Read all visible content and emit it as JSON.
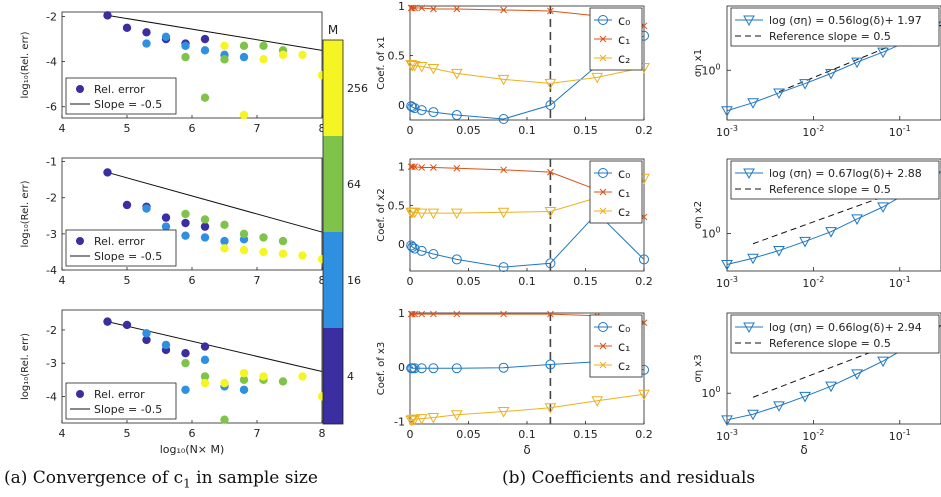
{
  "captions": {
    "a": "(a) Convergence of c",
    "a_sub": "1",
    "a_tail": " in sample size",
    "b": "(b) Coefficients and residuals"
  },
  "colors": {
    "m4": "#3a2ea0",
    "m16": "#2f8fe0",
    "m64": "#7fc34a",
    "m256": "#f5f523",
    "c0": "#1f77c4",
    "c1": "#d95319",
    "c2": "#edb120",
    "sigma": "#1f77c4"
  },
  "chart_data": [
    {
      "id": "a1",
      "type": "scatter",
      "xlim": [
        4,
        8
      ],
      "ylim": [
        -6.5,
        -1.8
      ],
      "xticks": [
        "4",
        "5",
        "6",
        "7",
        "8"
      ],
      "yticks": [
        -6,
        -4,
        -2
      ],
      "ytick_labels": [
        "-6",
        "-4",
        "-2"
      ],
      "xlabel": "",
      "ylabel": "log₁₀(Rel. err)",
      "legend": [
        "Rel. error",
        "Slope = -0.5"
      ],
      "legend_pos": "bottom-left",
      "slope_line": [
        [
          4.7,
          -1.95
        ],
        [
          8,
          -3.5
        ]
      ],
      "points": [
        {
          "x": 4.7,
          "y": -1.95,
          "m": "4"
        },
        {
          "x": 5.0,
          "y": -2.5,
          "m": "4"
        },
        {
          "x": 5.3,
          "y": -2.7,
          "m": "4"
        },
        {
          "x": 5.6,
          "y": -3.0,
          "m": "4"
        },
        {
          "x": 5.9,
          "y": -3.2,
          "m": "4"
        },
        {
          "x": 6.2,
          "y": -3.0,
          "m": "4"
        },
        {
          "x": 5.3,
          "y": -3.2,
          "m": "16"
        },
        {
          "x": 5.6,
          "y": -2.9,
          "m": "16"
        },
        {
          "x": 5.9,
          "y": -3.3,
          "m": "16"
        },
        {
          "x": 6.2,
          "y": -3.5,
          "m": "16"
        },
        {
          "x": 6.5,
          "y": -3.7,
          "m": "16"
        },
        {
          "x": 6.8,
          "y": -3.8,
          "m": "16"
        },
        {
          "x": 5.9,
          "y": -3.8,
          "m": "64"
        },
        {
          "x": 6.2,
          "y": -5.6,
          "m": "64"
        },
        {
          "x": 6.5,
          "y": -3.9,
          "m": "64"
        },
        {
          "x": 6.8,
          "y": -3.3,
          "m": "64"
        },
        {
          "x": 7.1,
          "y": -3.3,
          "m": "64"
        },
        {
          "x": 7.4,
          "y": -3.5,
          "m": "64"
        },
        {
          "x": 6.5,
          "y": -3.3,
          "m": "256"
        },
        {
          "x": 6.8,
          "y": -6.4,
          "m": "256"
        },
        {
          "x": 7.1,
          "y": -3.9,
          "m": "256"
        },
        {
          "x": 7.4,
          "y": -3.7,
          "m": "256"
        },
        {
          "x": 7.7,
          "y": -3.7,
          "m": "256"
        },
        {
          "x": 8.0,
          "y": -4.6,
          "m": "256"
        }
      ]
    },
    {
      "id": "a2",
      "type": "scatter",
      "xlim": [
        4,
        8
      ],
      "ylim": [
        -4,
        -0.9
      ],
      "xticks": [
        "4",
        "5",
        "6",
        "7",
        "8"
      ],
      "yticks": [
        -4,
        -3,
        -2,
        -1
      ],
      "ytick_labels": [
        "-4",
        "-3",
        "-2",
        "-1"
      ],
      "xlabel": "",
      "ylabel": "log₁₀(Rel. err)",
      "legend": [
        "Rel. error",
        "Slope = -0.5"
      ],
      "legend_pos": "bottom-left",
      "slope_line": [
        [
          4.7,
          -1.3
        ],
        [
          8,
          -2.95
        ]
      ],
      "points": [
        {
          "x": 4.7,
          "y": -1.3,
          "m": "4"
        },
        {
          "x": 5.0,
          "y": -2.2,
          "m": "4"
        },
        {
          "x": 5.3,
          "y": -2.25,
          "m": "4"
        },
        {
          "x": 5.6,
          "y": -2.55,
          "m": "4"
        },
        {
          "x": 5.9,
          "y": -2.7,
          "m": "4"
        },
        {
          "x": 6.2,
          "y": -2.8,
          "m": "4"
        },
        {
          "x": 5.3,
          "y": -2.3,
          "m": "16"
        },
        {
          "x": 5.6,
          "y": -2.8,
          "m": "16"
        },
        {
          "x": 5.9,
          "y": -3.05,
          "m": "16"
        },
        {
          "x": 6.2,
          "y": -3.1,
          "m": "16"
        },
        {
          "x": 6.5,
          "y": -3.2,
          "m": "16"
        },
        {
          "x": 6.8,
          "y": -3.15,
          "m": "16"
        },
        {
          "x": 5.9,
          "y": -2.45,
          "m": "64"
        },
        {
          "x": 6.2,
          "y": -2.6,
          "m": "64"
        },
        {
          "x": 6.5,
          "y": -2.75,
          "m": "64"
        },
        {
          "x": 6.8,
          "y": -3.0,
          "m": "64"
        },
        {
          "x": 7.1,
          "y": -3.1,
          "m": "64"
        },
        {
          "x": 7.4,
          "y": -3.2,
          "m": "64"
        },
        {
          "x": 6.5,
          "y": -3.4,
          "m": "256"
        },
        {
          "x": 6.8,
          "y": -3.45,
          "m": "256"
        },
        {
          "x": 7.1,
          "y": -3.5,
          "m": "256"
        },
        {
          "x": 7.4,
          "y": -3.55,
          "m": "256"
        },
        {
          "x": 7.7,
          "y": -3.6,
          "m": "256"
        },
        {
          "x": 8.0,
          "y": -3.7,
          "m": "256"
        }
      ]
    },
    {
      "id": "a3",
      "type": "scatter",
      "xlim": [
        4,
        8
      ],
      "ylim": [
        -4.8,
        -1.4
      ],
      "xticks": [
        "4",
        "5",
        "6",
        "7",
        "8"
      ],
      "yticks": [
        -4,
        -3,
        -2
      ],
      "ytick_labels": [
        "-4",
        "-3",
        "-2"
      ],
      "xlabel": "log₁₀(N× M)",
      "ylabel": "log₁₀(Rel. err)",
      "legend": [
        "Rel. error",
        "Slope = -0.5"
      ],
      "legend_pos": "bottom-left",
      "slope_line": [
        [
          4.7,
          -1.75
        ],
        [
          8,
          -3.25
        ]
      ],
      "points": [
        {
          "x": 4.7,
          "y": -1.75,
          "m": "4"
        },
        {
          "x": 5.0,
          "y": -1.85,
          "m": "4"
        },
        {
          "x": 5.3,
          "y": -2.3,
          "m": "4"
        },
        {
          "x": 5.6,
          "y": -2.6,
          "m": "4"
        },
        {
          "x": 5.9,
          "y": -2.7,
          "m": "4"
        },
        {
          "x": 6.2,
          "y": -2.5,
          "m": "4"
        },
        {
          "x": 5.3,
          "y": -2.1,
          "m": "16"
        },
        {
          "x": 5.6,
          "y": -2.45,
          "m": "16"
        },
        {
          "x": 5.9,
          "y": -3.8,
          "m": "16"
        },
        {
          "x": 6.2,
          "y": -2.9,
          "m": "16"
        },
        {
          "x": 6.5,
          "y": -3.7,
          "m": "16"
        },
        {
          "x": 6.8,
          "y": -3.8,
          "m": "16"
        },
        {
          "x": 5.9,
          "y": -3.0,
          "m": "64"
        },
        {
          "x": 6.2,
          "y": -3.4,
          "m": "64"
        },
        {
          "x": 6.5,
          "y": -4.7,
          "m": "64"
        },
        {
          "x": 6.8,
          "y": -3.5,
          "m": "64"
        },
        {
          "x": 7.1,
          "y": -3.5,
          "m": "64"
        },
        {
          "x": 7.4,
          "y": -3.55,
          "m": "64"
        },
        {
          "x": 6.2,
          "y": -3.6,
          "m": "256"
        },
        {
          "x": 6.5,
          "y": -3.6,
          "m": "256"
        },
        {
          "x": 6.8,
          "y": -3.3,
          "m": "256"
        },
        {
          "x": 7.1,
          "y": -3.4,
          "m": "256"
        },
        {
          "x": 7.7,
          "y": -3.4,
          "m": "256"
        },
        {
          "x": 8.0,
          "y": -4.0,
          "m": "256"
        }
      ]
    },
    {
      "id": "colorbar",
      "type": "colorbar",
      "title": "M",
      "labels": [
        "256",
        "64",
        "16",
        "4"
      ]
    },
    {
      "id": "b1",
      "type": "line",
      "xlim": [
        0,
        0.2
      ],
      "ylim": [
        -0.15,
        1.0
      ],
      "xticks": [
        "0",
        "0.05",
        "0.1",
        "0.15",
        "0.2"
      ],
      "yticks": [
        0,
        0.5,
        1
      ],
      "ytick_labels": [
        "0",
        "0.5",
        "1"
      ],
      "ylabel": "Coef. of x1",
      "xlabel": "",
      "vline": 0.12,
      "legend": [
        "c₀",
        "c₁",
        "c₂"
      ],
      "legend_pos": "top-right",
      "series": [
        {
          "key": "c0",
          "marker": "circle",
          "x": [
            0.001,
            0.002,
            0.004,
            0.01,
            0.02,
            0.04,
            0.08,
            0.12,
            0.16,
            0.2
          ],
          "y": [
            -0.01,
            -0.02,
            -0.03,
            -0.05,
            -0.07,
            -0.1,
            -0.14,
            0.0,
            0.4,
            0.7
          ]
        },
        {
          "key": "c1",
          "marker": "x",
          "x": [
            0.001,
            0.002,
            0.004,
            0.01,
            0.02,
            0.04,
            0.08,
            0.12,
            0.16,
            0.2
          ],
          "y": [
            0.98,
            0.98,
            0.98,
            0.98,
            0.97,
            0.97,
            0.96,
            0.95,
            0.9,
            0.8
          ]
        },
        {
          "key": "c2",
          "marker": "triangle",
          "x": [
            0.001,
            0.002,
            0.004,
            0.01,
            0.02,
            0.04,
            0.08,
            0.12,
            0.16,
            0.2
          ],
          "y": [
            0.41,
            0.4,
            0.4,
            0.39,
            0.37,
            0.32,
            0.26,
            0.22,
            0.28,
            0.38
          ]
        }
      ]
    },
    {
      "id": "b2",
      "type": "line",
      "xlim": [
        0,
        0.2
      ],
      "ylim": [
        -0.35,
        1.1
      ],
      "xticks": [
        "0",
        "0.05",
        "0.1",
        "0.15",
        "0.2"
      ],
      "yticks": [
        0,
        0.5,
        1
      ],
      "ytick_labels": [
        "0",
        "0.5",
        "1"
      ],
      "ylabel": "Coef. of x2",
      "xlabel": "",
      "vline": 0.12,
      "legend": [
        "c₀",
        "c₁",
        "c₂"
      ],
      "legend_pos": "top-right",
      "series": [
        {
          "key": "c0",
          "marker": "circle",
          "x": [
            0.001,
            0.002,
            0.004,
            0.01,
            0.02,
            0.04,
            0.08,
            0.12,
            0.16,
            0.2
          ],
          "y": [
            -0.02,
            -0.04,
            -0.06,
            -0.09,
            -0.13,
            -0.2,
            -0.3,
            -0.25,
            0.4,
            -0.2
          ]
        },
        {
          "key": "c1",
          "marker": "x",
          "x": [
            0.001,
            0.002,
            0.004,
            0.01,
            0.02,
            0.04,
            0.08,
            0.12,
            0.16,
            0.2
          ],
          "y": [
            1.0,
            1.0,
            1.0,
            0.99,
            0.99,
            0.98,
            0.96,
            0.93,
            0.7,
            0.35
          ]
        },
        {
          "key": "c2",
          "marker": "triangle",
          "x": [
            0.001,
            0.002,
            0.004,
            0.01,
            0.02,
            0.04,
            0.08,
            0.12,
            0.16,
            0.2
          ],
          "y": [
            0.41,
            0.41,
            0.41,
            0.4,
            0.4,
            0.4,
            0.41,
            0.42,
            0.6,
            0.85
          ]
        }
      ]
    },
    {
      "id": "b3",
      "type": "line",
      "xlim": [
        0,
        0.2
      ],
      "ylim": [
        -1.05,
        1.0
      ],
      "xticks": [
        "0",
        "0.05",
        "0.1",
        "0.15",
        "0.2"
      ],
      "yticks": [
        -1,
        0,
        1
      ],
      "ytick_labels": [
        "-1",
        "0",
        "1"
      ],
      "ylabel": "Coef. of x3",
      "xlabel": "δ",
      "vline": 0.12,
      "legend": [
        "c₀",
        "c₁",
        "c₂"
      ],
      "legend_pos": "top-right",
      "series": [
        {
          "key": "c0",
          "marker": "circle",
          "x": [
            0.001,
            0.002,
            0.004,
            0.01,
            0.02,
            0.04,
            0.08,
            0.12,
            0.16,
            0.2
          ],
          "y": [
            -0.02,
            -0.02,
            -0.02,
            -0.02,
            -0.02,
            -0.02,
            -0.01,
            0.05,
            0.1,
            -0.05
          ]
        },
        {
          "key": "c1",
          "marker": "x",
          "x": [
            0.001,
            0.002,
            0.004,
            0.01,
            0.02,
            0.04,
            0.08,
            0.12,
            0.16,
            0.2
          ],
          "y": [
            0.98,
            0.98,
            0.98,
            0.98,
            0.98,
            0.98,
            0.98,
            0.98,
            0.95,
            0.82
          ]
        },
        {
          "key": "c2",
          "marker": "triangle",
          "x": [
            0.001,
            0.002,
            0.004,
            0.01,
            0.02,
            0.04,
            0.08,
            0.12,
            0.16,
            0.2
          ],
          "y": [
            -0.98,
            -0.97,
            -0.96,
            -0.95,
            -0.93,
            -0.88,
            -0.82,
            -0.75,
            -0.62,
            -0.5
          ]
        }
      ]
    },
    {
      "id": "c1",
      "type": "line",
      "xscale": "log",
      "yscale": "log",
      "xlim": [
        0.001,
        0.3
      ],
      "ylim": [
        0.2,
        8
      ],
      "xticks": [
        0.001,
        0.01,
        0.1
      ],
      "xtick_labels": [
        "10",
        "10",
        "10"
      ],
      "xtick_exps": [
        "-3",
        "-2",
        "-1"
      ],
      "yticks": [
        1
      ],
      "ytick_labels": [
        "10"
      ],
      "ytick_exps": [
        "0"
      ],
      "ylabel": "ση x1",
      "xlabel": "",
      "legend": [
        "log (ση) = 0.56log(δ)+ 1.97",
        "Reference slope = 0.5"
      ],
      "legend_pos": "top",
      "series": [
        {
          "key": "sigma",
          "marker": "triangle",
          "x": [
            0.001,
            0.002,
            0.004,
            0.008,
            0.016,
            0.032,
            0.064,
            0.128,
            0.256
          ],
          "y": [
            0.27,
            0.35,
            0.48,
            0.65,
            0.9,
            1.3,
            1.8,
            2.6,
            4.2
          ]
        }
      ],
      "reference": {
        "x": [
          0.004,
          0.3
        ],
        "y": [
          0.5,
          4.3
        ]
      }
    },
    {
      "id": "c2",
      "type": "line",
      "xscale": "log",
      "yscale": "log",
      "xlim": [
        0.001,
        0.3
      ],
      "ylim": [
        0.35,
        8
      ],
      "xticks": [
        0.001,
        0.01,
        0.1
      ],
      "xtick_labels": [
        "10",
        "10",
        "10"
      ],
      "xtick_exps": [
        "-3",
        "-2",
        "-1"
      ],
      "yticks": [
        1
      ],
      "ytick_labels": [
        "10"
      ],
      "ytick_exps": [
        "0"
      ],
      "ylabel": "ση x2",
      "xlabel": "",
      "legend": [
        "log (ση) = 0.67log(δ)+ 2.88",
        "Reference slope = 0.5"
      ],
      "legend_pos": "top",
      "series": [
        {
          "key": "sigma",
          "marker": "triangle",
          "x": [
            0.001,
            0.002,
            0.004,
            0.008,
            0.016,
            0.032,
            0.064,
            0.128,
            0.256
          ],
          "y": [
            0.42,
            0.5,
            0.62,
            0.8,
            1.05,
            1.5,
            2.1,
            3.2,
            5.0
          ]
        }
      ],
      "reference": {
        "x": [
          0.002,
          0.3
        ],
        "y": [
          0.75,
          5.0
        ]
      }
    },
    {
      "id": "c3",
      "type": "line",
      "xscale": "log",
      "yscale": "log",
      "xlim": [
        0.001,
        0.3
      ],
      "ylim": [
        0.45,
        8
      ],
      "xticks": [
        0.001,
        0.01,
        0.1
      ],
      "xtick_labels": [
        "10",
        "10",
        "10"
      ],
      "xtick_exps": [
        "-3",
        "-2",
        "-1"
      ],
      "yticks": [
        1
      ],
      "ytick_labels": [
        "10"
      ],
      "ytick_exps": [
        "0"
      ],
      "ylabel": "ση x3",
      "xlabel": "δ",
      "legend": [
        "log (ση) = 0.66log(δ)+ 2.94",
        "Reference slope = 0.5"
      ],
      "legend_pos": "top",
      "series": [
        {
          "key": "sigma",
          "marker": "triangle",
          "x": [
            0.001,
            0.002,
            0.004,
            0.008,
            0.016,
            0.032,
            0.064,
            0.128,
            0.256
          ],
          "y": [
            0.5,
            0.58,
            0.72,
            0.92,
            1.2,
            1.65,
            2.3,
            3.4,
            5.2
          ]
        }
      ],
      "reference": {
        "x": [
          0.002,
          0.3
        ],
        "y": [
          0.9,
          5.8
        ]
      }
    }
  ]
}
